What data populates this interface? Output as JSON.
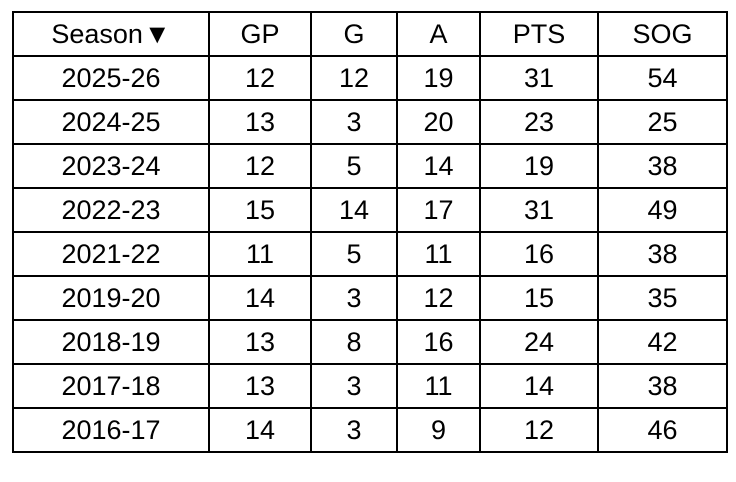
{
  "table": {
    "columns": [
      {
        "label": "Season",
        "sort_indicator": "▼"
      },
      {
        "label": "GP"
      },
      {
        "label": "G"
      },
      {
        "label": "A"
      },
      {
        "label": "PTS"
      },
      {
        "label": "SOG"
      }
    ],
    "rows": [
      [
        "2025-26",
        "12",
        "12",
        "19",
        "31",
        "54"
      ],
      [
        "2024-25",
        "13",
        "3",
        "20",
        "23",
        "25"
      ],
      [
        "2023-24",
        "12",
        "5",
        "14",
        "19",
        "38"
      ],
      [
        "2022-23",
        "15",
        "14",
        "17",
        "31",
        "49"
      ],
      [
        "2021-22",
        "11",
        "5",
        "11",
        "16",
        "38"
      ],
      [
        "2019-20",
        "14",
        "3",
        "12",
        "15",
        "35"
      ],
      [
        "2018-19",
        "13",
        "8",
        "16",
        "24",
        "42"
      ],
      [
        "2017-18",
        "13",
        "3",
        "11",
        "14",
        "38"
      ],
      [
        "2016-17",
        "14",
        "3",
        "9",
        "12",
        "46"
      ]
    ]
  }
}
